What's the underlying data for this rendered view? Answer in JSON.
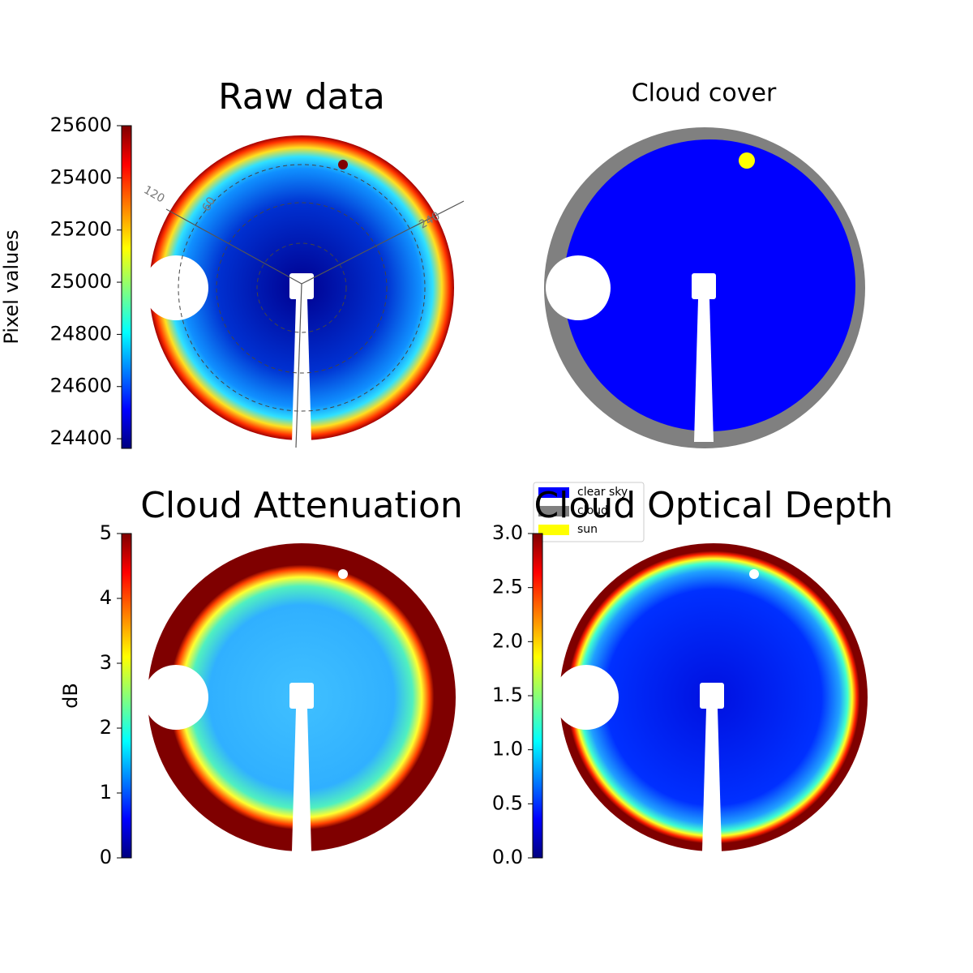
{
  "chart_data": [
    {
      "type": "image",
      "title": "Raw data",
      "colorbar_label": "Pixel values",
      "colormap": "jet",
      "ylim": [
        24363,
        25600
      ],
      "yticks": [
        24400,
        24600,
        24800,
        25000,
        25200,
        25400,
        25600
      ],
      "annotations": [
        "120",
        "60",
        "240"
      ]
    },
    {
      "type": "image",
      "title": "Cloud cover",
      "legend": [
        {
          "name": "clear sky",
          "color": "#0000ff"
        },
        {
          "name": "cloud",
          "color": "#808080"
        },
        {
          "name": "sun",
          "color": "#ffff00"
        }
      ]
    },
    {
      "type": "image",
      "title": "Cloud Attenuation",
      "colorbar_label": "dB",
      "colormap": "jet",
      "ylim": [
        0,
        5
      ],
      "yticks": [
        0,
        1,
        2,
        3,
        4,
        5
      ]
    },
    {
      "type": "image",
      "title": "Cloud Optical Depth",
      "colormap": "jet",
      "ylim": [
        0,
        3
      ],
      "yticks": [
        {
          "value": 0,
          "label": "0.0"
        },
        {
          "value": 0.5,
          "label": "0.5"
        },
        {
          "value": 1,
          "label": "1.0"
        },
        {
          "value": 1.5,
          "label": "1.5"
        },
        {
          "value": 2,
          "label": "2.0"
        },
        {
          "value": 2.5,
          "label": "2.5"
        },
        {
          "value": 3,
          "label": "3.0"
        }
      ]
    }
  ]
}
